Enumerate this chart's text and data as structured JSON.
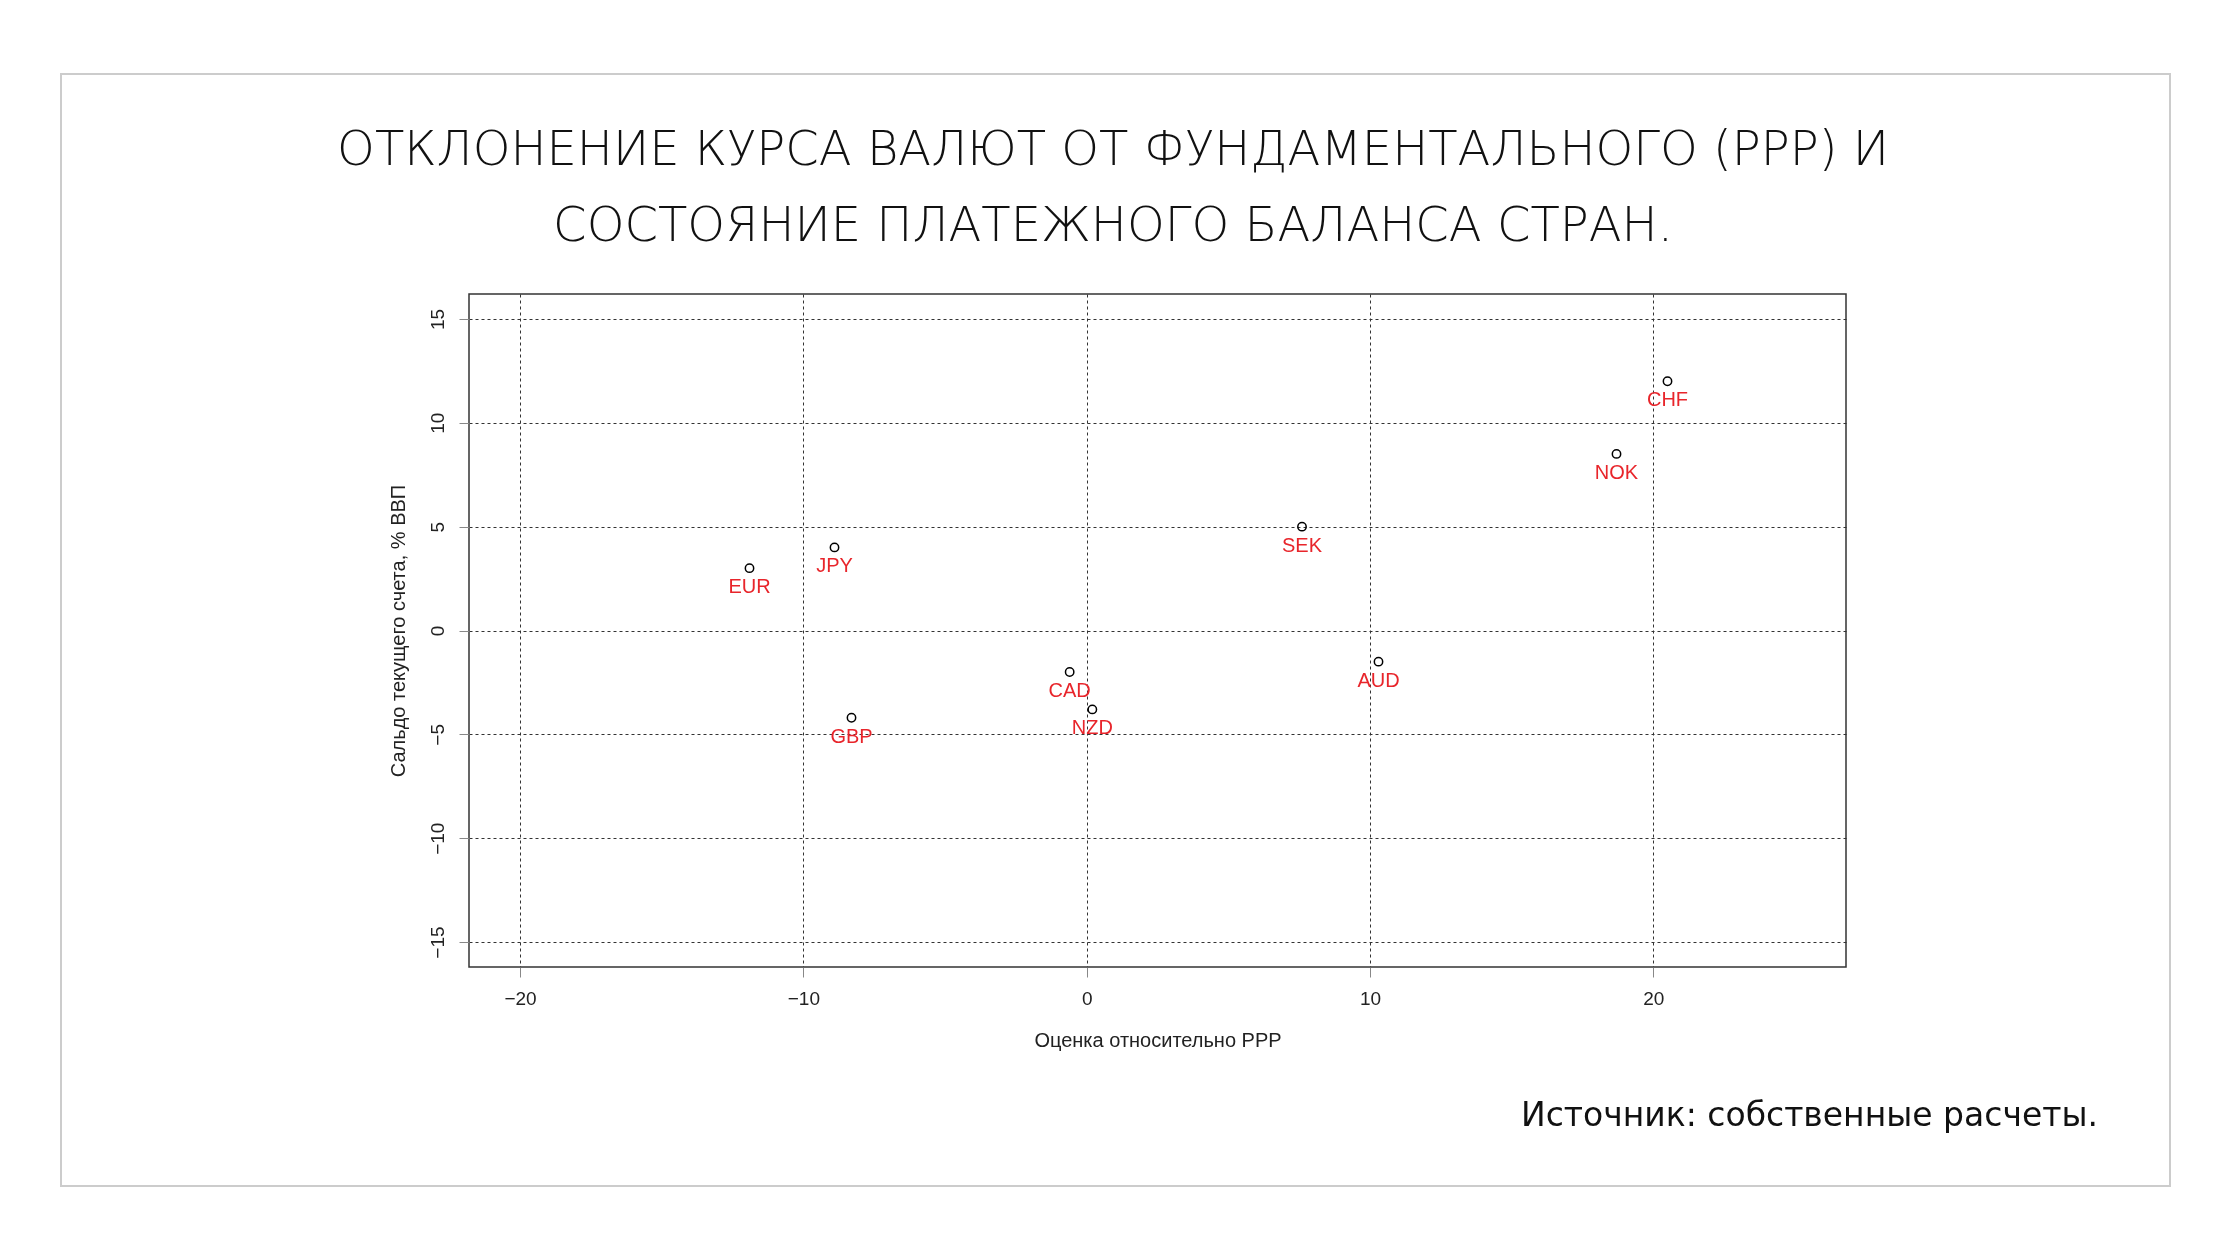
{
  "chart_data": {
    "type": "scatter",
    "title": "ОТКЛОНЕНИЕ КУРСА ВАЛЮТ ОТ ФУНДАМЕНТАЛЬНОГО (PPP) И СОСТОЯНИЕ ПЛАТЕЖНОГО БАЛАНСА СТРАН.",
    "xlabel": "Оценка относительно PPP",
    "ylabel": "Сальдо текущего счета, % ВВП",
    "x": [
      -11.9,
      -8.9,
      -8.3,
      -0.6,
      0.2,
      7.6,
      10.3,
      18.7,
      20.5
    ],
    "series": [
      {
        "color": "#000000",
        "values": [
          3.0,
          4.0,
          -4.2,
          -2.0,
          -3.8,
          5.0,
          -1.5,
          8.5,
          12.0
        ]
      }
    ],
    "marker": "circle",
    "grid": true,
    "xlim": [
      -21.8,
      26.8
    ],
    "xticks": [
      -20,
      -10,
      0,
      10,
      20
    ],
    "ylim": [
      -16.2,
      16.2
    ],
    "yticks": [
      -15,
      -10,
      -5,
      0,
      5,
      10,
      15
    ],
    "annotations": [
      {
        "text": "EUR",
        "x": -11.9,
        "y": 3.0
      },
      {
        "text": "JPY",
        "x": -8.9,
        "y": 4.0
      },
      {
        "text": "GBP",
        "x": -8.3,
        "y": -4.2
      },
      {
        "text": "CAD",
        "x": -0.6,
        "y": -2.0
      },
      {
        "text": "NZD",
        "x": 0.2,
        "y": -3.8
      },
      {
        "text": "SEK",
        "x": 7.6,
        "y": 5.0
      },
      {
        "text": "AUD",
        "x": 10.3,
        "y": -1.5
      },
      {
        "text": "NOK",
        "x": 18.7,
        "y": 8.5
      },
      {
        "text": "CHF",
        "x": 20.5,
        "y": 12.0
      },
      "Источник: собственные расчеты."
    ]
  }
}
